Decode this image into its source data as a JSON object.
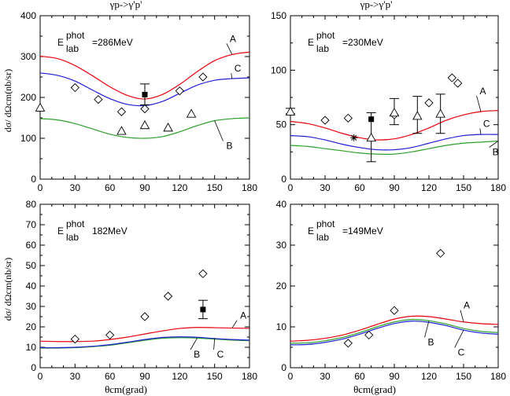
{
  "figure": {
    "ylabel_top": "dσ/ dΩcm(nb/sr)",
    "ylabel_bottom": "dσ/ dΩcm(nb/sr)",
    "xlabel": "θcm(grad)"
  },
  "colors": {
    "A": "#e8000b",
    "B": "#2ca02c",
    "C": "#1f1fd6",
    "marker": "#000000"
  },
  "chart_data": [
    {
      "type": "line",
      "title": "γp->γ'p'",
      "energy_label": {
        "prefix": "E",
        "sup": "phot",
        "sub": "lab",
        "value": "=286MeV"
      },
      "xlim": [
        0,
        180
      ],
      "ylim": [
        0,
        400
      ],
      "xticks": [
        0,
        30,
        60,
        90,
        120,
        150,
        180
      ],
      "yticks": [
        0,
        100,
        200,
        300,
        400
      ],
      "series": [
        {
          "name": "A",
          "color": "#e8000b",
          "x": [
            0,
            15,
            30,
            45,
            60,
            75,
            90,
            105,
            120,
            135,
            150,
            165,
            180
          ],
          "y": [
            301,
            295,
            278,
            253,
            226,
            205,
            196,
            207,
            232,
            263,
            290,
            305,
            311
          ]
        },
        {
          "name": "C",
          "color": "#1f1fd6",
          "x": [
            0,
            15,
            30,
            45,
            60,
            75,
            90,
            105,
            120,
            135,
            150,
            165,
            180
          ],
          "y": [
            260,
            254,
            240,
            218,
            197,
            183,
            180,
            190,
            210,
            230,
            242,
            246,
            248
          ]
        },
        {
          "name": "B",
          "color": "#2ca02c",
          "x": [
            0,
            15,
            30,
            45,
            60,
            75,
            90,
            105,
            120,
            135,
            150,
            165,
            180
          ],
          "y": [
            148,
            145,
            136,
            123,
            110,
            102,
            100,
            104,
            116,
            131,
            143,
            148,
            150
          ]
        }
      ],
      "markers": {
        "diamond": [
          [
            30,
            224
          ],
          [
            50,
            195
          ],
          [
            70,
            165
          ],
          [
            90,
            172
          ],
          [
            120,
            216
          ],
          [
            140,
            250
          ]
        ],
        "triangle": [
          [
            0,
            175
          ],
          [
            70,
            118
          ],
          [
            90,
            132
          ],
          [
            110,
            126
          ],
          [
            130,
            160
          ]
        ],
        "square": [
          [
            90,
            207
          ]
        ],
        "star": []
      },
      "errorbars": [
        {
          "x": 90,
          "y": 207,
          "low": 182,
          "high": 233
        }
      ],
      "curve_labels": [
        {
          "text": "A",
          "x": 163,
          "y": 336
        },
        {
          "text": "C",
          "x": 167,
          "y": 263
        },
        {
          "text": "B",
          "x": 160,
          "y": 74
        }
      ]
    },
    {
      "type": "line",
      "title": "γp->γ'p'",
      "energy_label": {
        "prefix": "E",
        "sup": "phot",
        "sub": "lab",
        "value": "=230MeV"
      },
      "xlim": [
        0,
        180
      ],
      "ylim": [
        0,
        150
      ],
      "xticks": [
        0,
        30,
        60,
        90,
        120,
        150,
        180
      ],
      "yticks": [
        0,
        50,
        100,
        150
      ],
      "series": [
        {
          "name": "A",
          "color": "#e8000b",
          "x": [
            0,
            15,
            30,
            45,
            60,
            75,
            90,
            105,
            120,
            135,
            150,
            165,
            180
          ],
          "y": [
            53,
            51,
            47,
            42,
            38,
            36,
            37,
            41,
            47,
            54,
            59,
            62,
            63
          ]
        },
        {
          "name": "C",
          "color": "#1f1fd6",
          "x": [
            0,
            15,
            30,
            45,
            60,
            75,
            90,
            105,
            120,
            135,
            150,
            165,
            180
          ],
          "y": [
            40,
            39,
            36,
            32,
            29,
            27,
            27,
            29,
            33,
            37,
            40,
            41,
            41
          ]
        },
        {
          "name": "B",
          "color": "#2ca02c",
          "x": [
            0,
            15,
            30,
            45,
            60,
            75,
            90,
            105,
            120,
            135,
            150,
            165,
            180
          ],
          "y": [
            31,
            30,
            28,
            26,
            24,
            23,
            23,
            25,
            28,
            31,
            33,
            34,
            35
          ]
        }
      ],
      "markers": {
        "diamond": [
          [
            30,
            54
          ],
          [
            50,
            56
          ],
          [
            90,
            59
          ],
          [
            120,
            70
          ],
          [
            140,
            93
          ],
          [
            145,
            88
          ]
        ],
        "triangle": [
          [
            0,
            62
          ],
          [
            70,
            38
          ],
          [
            90,
            61
          ],
          [
            110,
            58
          ],
          [
            130,
            60
          ]
        ],
        "square": [
          [
            70,
            55
          ]
        ],
        "star": [
          [
            55,
            38
          ]
        ]
      },
      "errorbars": [
        {
          "x": 0,
          "y": 62,
          "low": 60,
          "high": 65
        },
        {
          "x": 70,
          "y": 38,
          "low": 16,
          "high": 61
        },
        {
          "x": 90,
          "y": 61,
          "low": 50,
          "high": 74
        },
        {
          "x": 110,
          "y": 58,
          "low": 42,
          "high": 76
        },
        {
          "x": 130,
          "y": 60,
          "low": 42,
          "high": 78
        }
      ],
      "curve_labels": [
        {
          "text": "A",
          "x": 164,
          "y": 78
        },
        {
          "text": "C",
          "x": 167,
          "y": 48
        },
        {
          "text": "B",
          "x": 175,
          "y": 22
        }
      ]
    },
    {
      "type": "line",
      "title": "",
      "energy_label": {
        "prefix": "E",
        "sup": "phot",
        "sub": "lab",
        "value": "182MeV"
      },
      "xlim": [
        0,
        180
      ],
      "ylim": [
        0,
        80
      ],
      "xticks": [
        0,
        30,
        60,
        90,
        120,
        150,
        180
      ],
      "yticks": [
        0,
        10,
        20,
        30,
        40,
        50,
        60,
        70,
        80
      ],
      "series": [
        {
          "name": "A",
          "color": "#e8000b",
          "x": [
            0,
            15,
            30,
            45,
            60,
            75,
            90,
            105,
            120,
            135,
            150,
            165,
            180
          ],
          "y": [
            13,
            12.8,
            12.8,
            13,
            13.8,
            15,
            16.5,
            18,
            19.2,
            19.7,
            19.6,
            19.4,
            19.3
          ]
        },
        {
          "name": "B",
          "color": "#2ca02c",
          "x": [
            0,
            15,
            30,
            45,
            60,
            75,
            90,
            105,
            120,
            135,
            150,
            165,
            180
          ],
          "y": [
            9.6,
            9.6,
            9.8,
            10.3,
            11,
            12.2,
            13.4,
            14.4,
            14.7,
            14.5,
            14,
            13.5,
            13.2
          ]
        },
        {
          "name": "C",
          "color": "#1f1fd6",
          "x": [
            0,
            15,
            30,
            45,
            60,
            75,
            90,
            105,
            120,
            135,
            150,
            165,
            180
          ],
          "y": [
            9.8,
            9.8,
            10,
            10.5,
            11.3,
            12.5,
            13.8,
            14.8,
            15.1,
            14.9,
            14.3,
            13.8,
            13.5
          ]
        }
      ],
      "markers": {
        "diamond": [
          [
            30,
            14
          ],
          [
            60,
            16
          ],
          [
            90,
            25
          ],
          [
            110,
            35
          ],
          [
            140,
            46
          ]
        ],
        "triangle": [],
        "square": [
          [
            140,
            28.5
          ]
        ],
        "star": []
      },
      "errorbars": [
        {
          "x": 140,
          "y": 28.5,
          "low": 24,
          "high": 33
        }
      ],
      "curve_labels": [
        {
          "text": "A",
          "x": 172,
          "y": 24
        },
        {
          "text": "B",
          "x": 132,
          "y": 5
        },
        {
          "text": "C",
          "x": 152,
          "y": 5
        }
      ]
    },
    {
      "type": "line",
      "title": "",
      "energy_label": {
        "prefix": "E",
        "sup": "phot",
        "sub": "lab",
        "value": "=149MeV"
      },
      "xlim": [
        0,
        180
      ],
      "ylim": [
        0,
        40
      ],
      "xticks": [
        0,
        30,
        60,
        90,
        120,
        150,
        180
      ],
      "yticks": [
        0,
        10,
        20,
        30,
        40
      ],
      "series": [
        {
          "name": "A",
          "color": "#e8000b",
          "x": [
            0,
            15,
            30,
            45,
            60,
            75,
            90,
            105,
            120,
            135,
            150,
            165,
            180
          ],
          "y": [
            6.5,
            6.7,
            7.2,
            8,
            9.2,
            10.6,
            11.9,
            12.6,
            12.5,
            11.9,
            11.2,
            10.8,
            10.6
          ]
        },
        {
          "name": "B",
          "color": "#2ca02c",
          "x": [
            0,
            15,
            30,
            45,
            60,
            75,
            90,
            105,
            120,
            135,
            150,
            165,
            180
          ],
          "y": [
            6,
            6.1,
            6.6,
            7.4,
            8.6,
            10,
            11.2,
            11.8,
            11.5,
            10.7,
            9.6,
            8.9,
            8.6
          ]
        },
        {
          "name": "C",
          "color": "#1f1fd6",
          "x": [
            0,
            15,
            30,
            45,
            60,
            75,
            90,
            105,
            120,
            135,
            150,
            165,
            180
          ],
          "y": [
            5.6,
            5.7,
            6.2,
            7,
            8.2,
            9.6,
            10.8,
            11.4,
            11.1,
            10.3,
            9.2,
            8.5,
            8.2
          ]
        }
      ],
      "markers": {
        "diamond": [
          [
            50,
            6
          ],
          [
            68,
            8
          ],
          [
            90,
            14
          ],
          [
            130,
            28
          ]
        ],
        "triangle": [],
        "square": [],
        "star": []
      },
      "errorbars": [],
      "curve_labels": [
        {
          "text": "A",
          "x": 150,
          "y": 14.5
        },
        {
          "text": "B",
          "x": 119,
          "y": 5.5
        },
        {
          "text": "C",
          "x": 145,
          "y": 3
        }
      ]
    }
  ]
}
